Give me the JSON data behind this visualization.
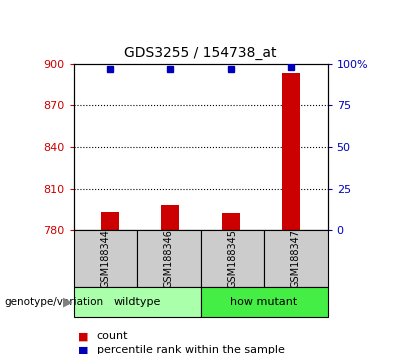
{
  "title": "GDS3255 / 154738_at",
  "samples": [
    "GSM188344",
    "GSM188346",
    "GSM188345",
    "GSM188347"
  ],
  "groups": [
    {
      "name": "wildtype",
      "color": "#AAFFAA",
      "samples_idx": [
        0,
        1
      ]
    },
    {
      "name": "how mutant",
      "color": "#44EE44",
      "samples_idx": [
        2,
        3
      ]
    }
  ],
  "bar_values": [
    793,
    798,
    792,
    893
  ],
  "percentile_values": [
    97,
    97,
    97,
    98
  ],
  "ylim_left": [
    780,
    900
  ],
  "ylim_right": [
    0,
    100
  ],
  "yticks_left": [
    780,
    810,
    840,
    870,
    900
  ],
  "yticks_right": [
    0,
    25,
    50,
    75,
    100
  ],
  "bar_color": "#CC0000",
  "dot_color": "#0000BB",
  "bar_bottom": 780,
  "plot_bg_color": "#FFFFFF",
  "label_color_left": "#CC0000",
  "label_color_right": "#0000BB",
  "sample_bg_color": "#CCCCCC",
  "group_label": "genotype/variation",
  "grid_yticks": [
    810,
    840,
    870
  ]
}
